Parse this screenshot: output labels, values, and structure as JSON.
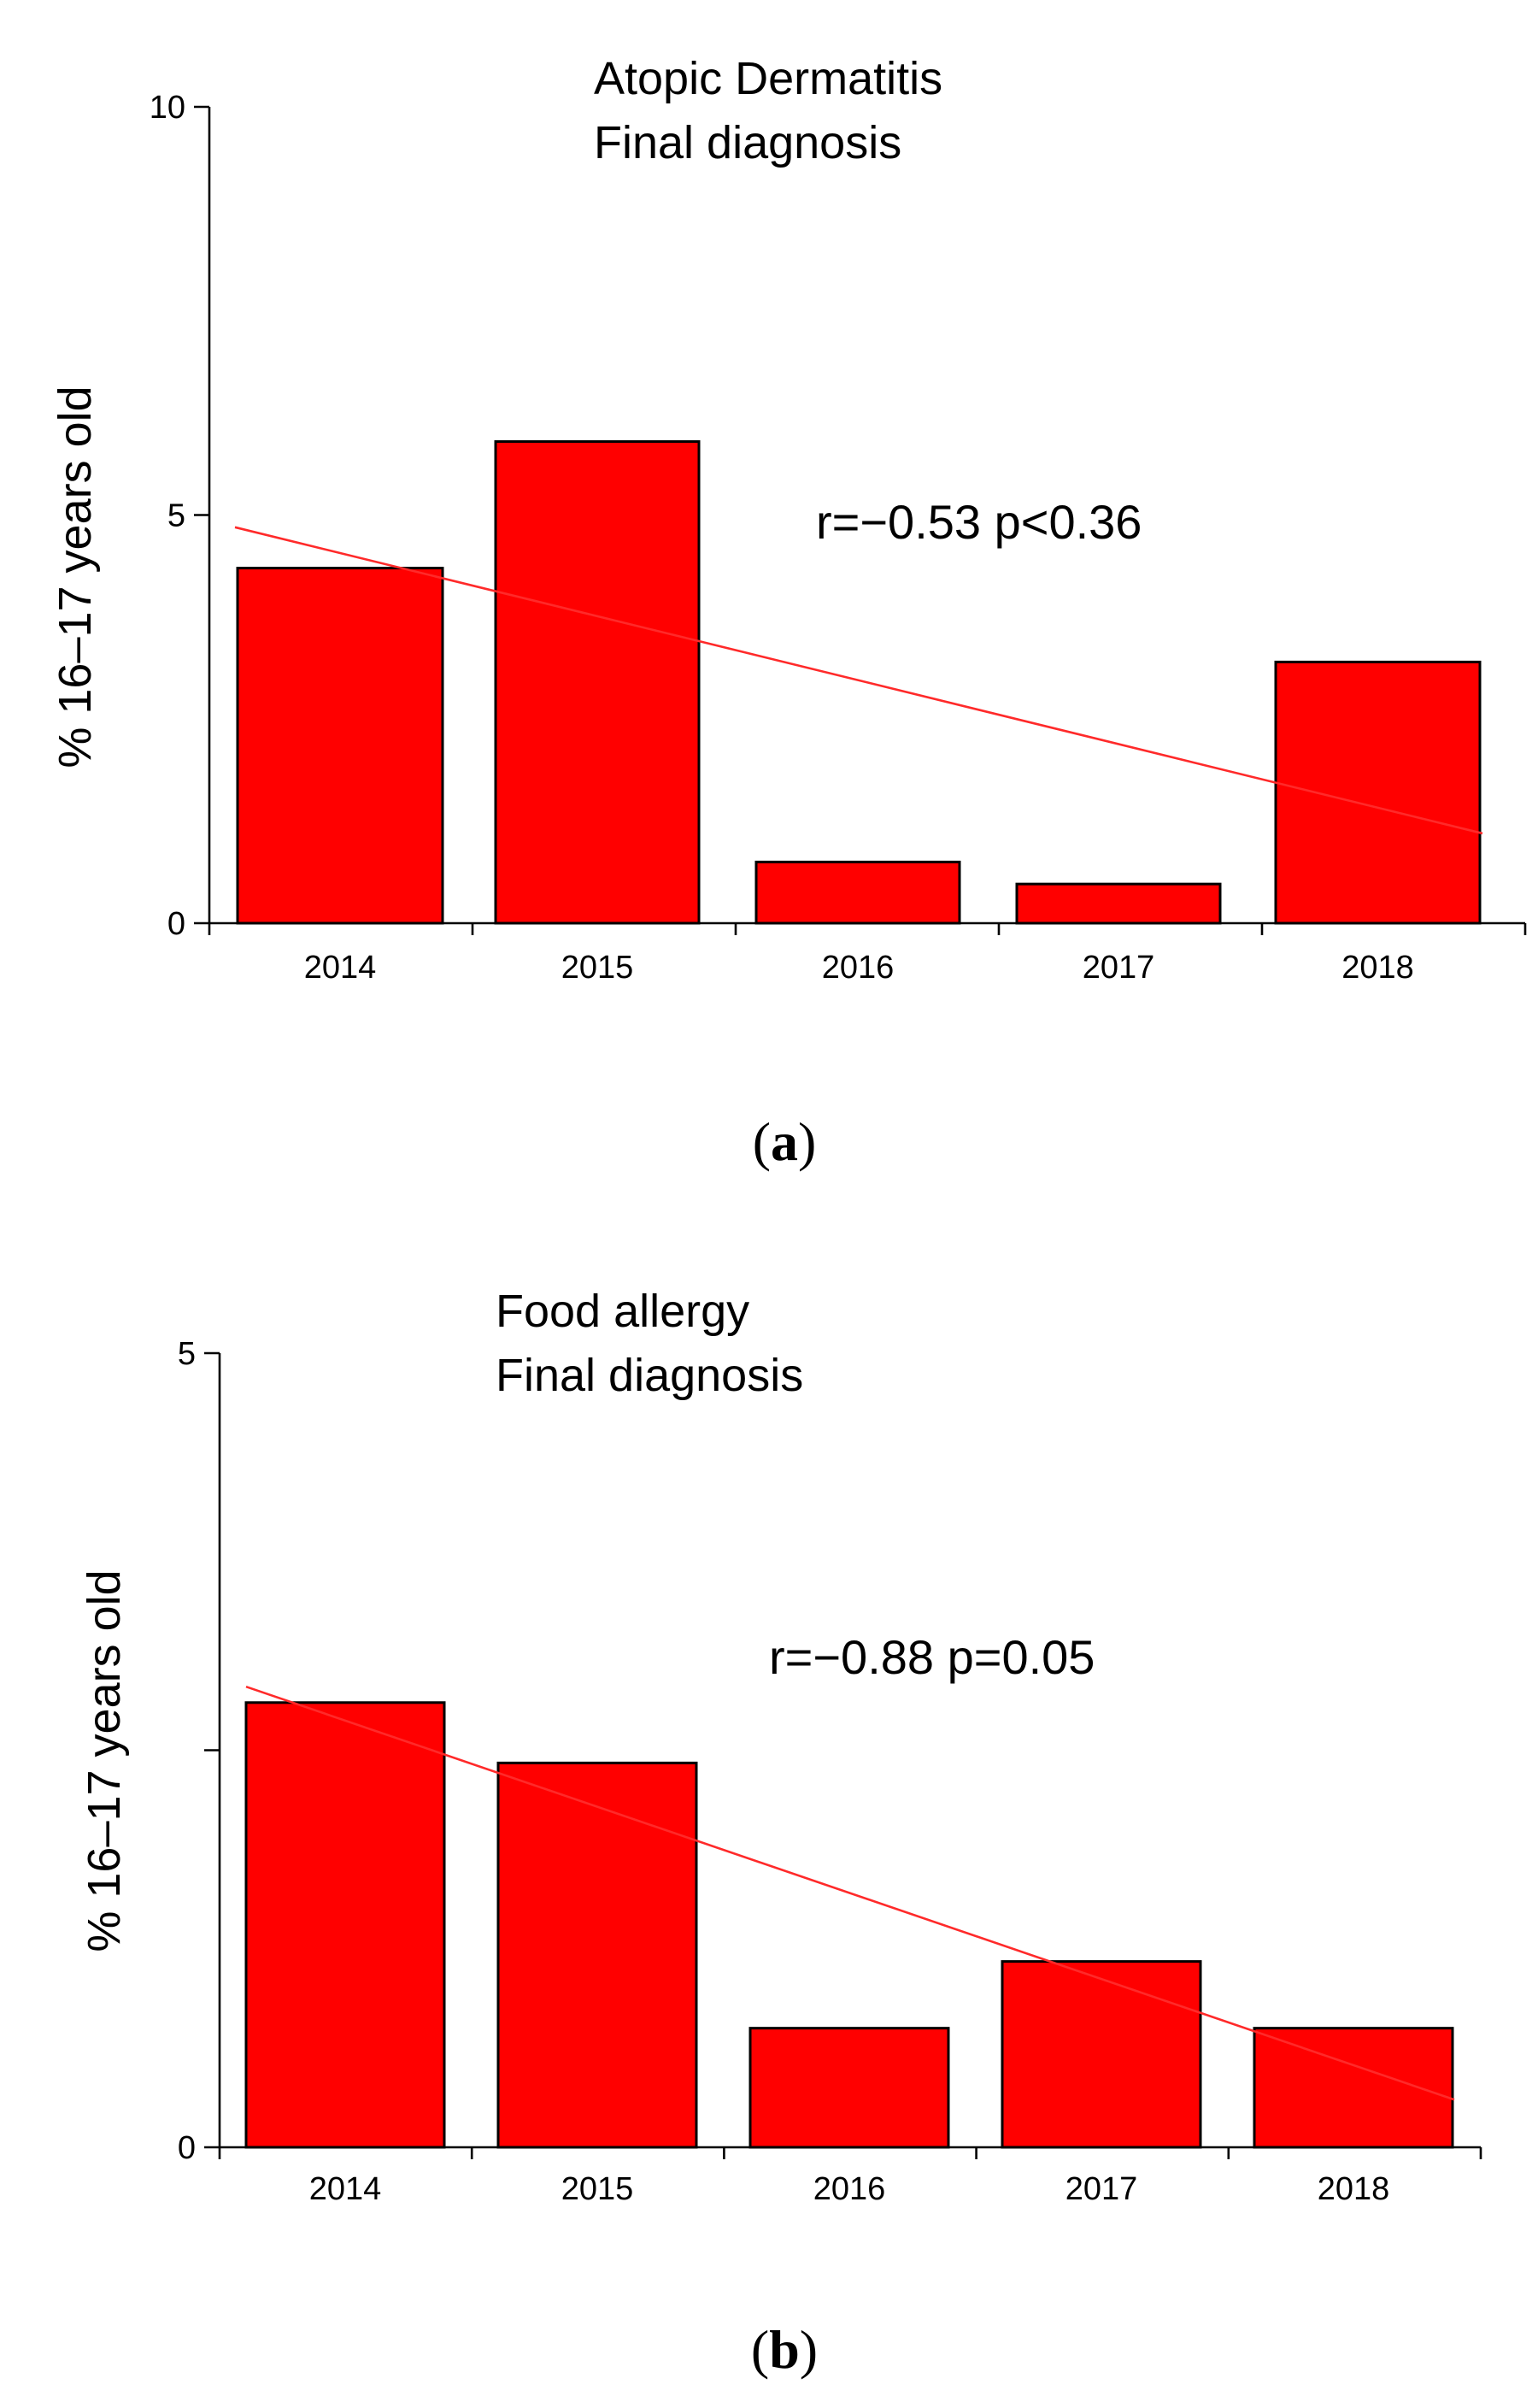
{
  "chart_data": [
    {
      "type": "bar",
      "title": [
        "Atopic Dermatitis",
        "Final diagnosis"
      ],
      "ylabel": "% 16–17 years old",
      "xlabel": "",
      "ylim": [
        0,
        10
      ],
      "yticks": [
        0,
        5,
        10
      ],
      "categories": [
        "2014",
        "2015",
        "2016",
        "2017",
        "2018"
      ],
      "values": [
        4.35,
        5.9,
        0.75,
        0.48,
        3.2
      ],
      "trend": {
        "start": 4.85,
        "end": 1.1
      },
      "annotation": "r=−0.53  p<0.36",
      "caption_letter": "a",
      "colors": {
        "bar": "#ff0000",
        "trend": "#ff2a2a"
      }
    },
    {
      "type": "bar",
      "title": [
        "Food allergy",
        "Final diagnosis"
      ],
      "ylabel": "% 16–17 years old",
      "xlabel": "",
      "ylim": [
        0,
        5
      ],
      "yticks": [
        0,
        2.5,
        5
      ],
      "yticklabels": [
        "0",
        "",
        "5"
      ],
      "categories": [
        "2014",
        "2015",
        "2016",
        "2017",
        "2018"
      ],
      "values": [
        2.8,
        2.42,
        0.75,
        1.17,
        0.75
      ],
      "trend": {
        "start": 2.9,
        "end": 0.3
      },
      "annotation": "r=−0.88  p=0.05",
      "caption_letter": "b",
      "colors": {
        "bar": "#ff0000",
        "trend": "#ff2a2a"
      }
    }
  ]
}
